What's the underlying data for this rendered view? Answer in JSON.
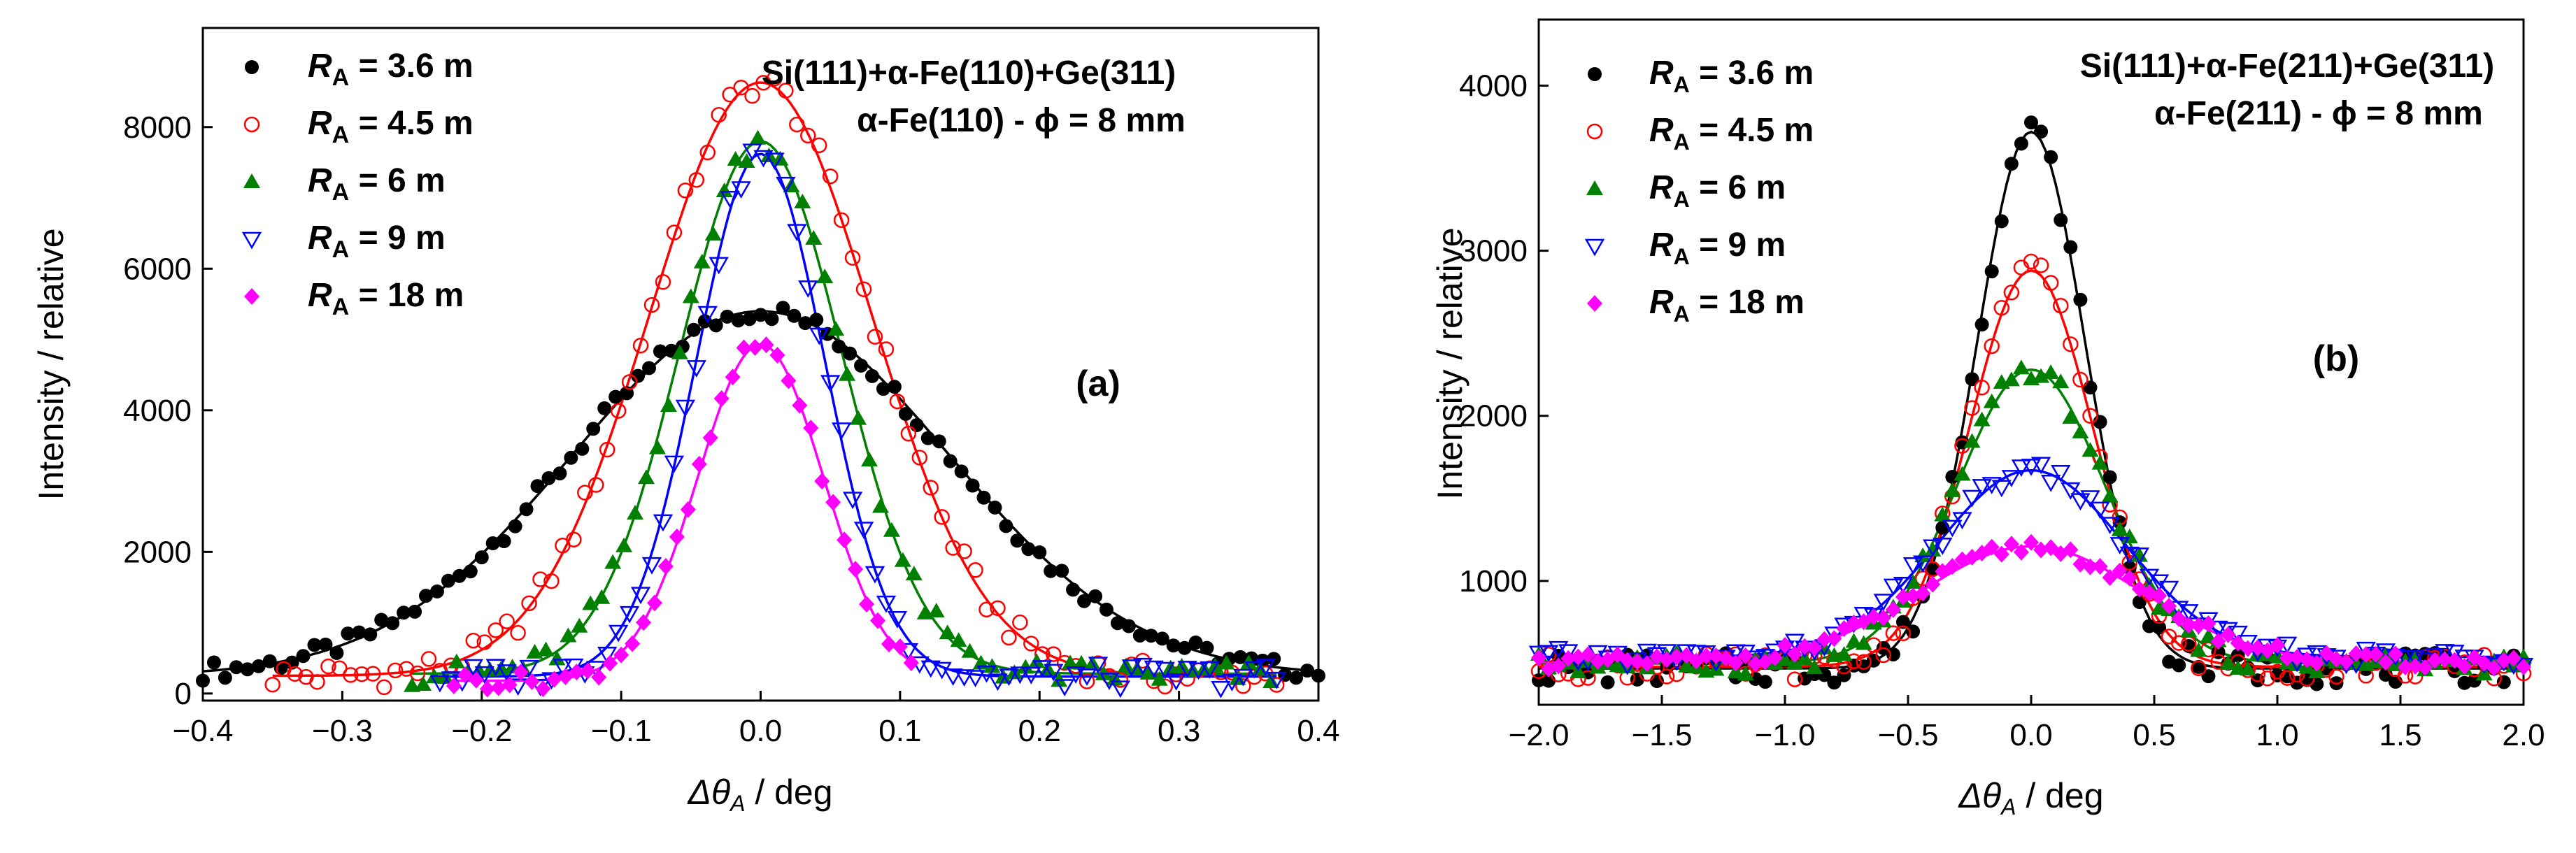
{
  "chart_data": [
    {
      "type": "scatter",
      "panel_label": "(a)",
      "annotation_line1": "Si(111)+α-Fe(110)+Ge(311)",
      "annotation_line2": "α-Fe(110) - ϕ = 8 mm",
      "xlabel": "Δθ_A / deg",
      "ylabel": "Intensity / relative",
      "xlim": [
        -0.4,
        0.4
      ],
      "ylim": [
        -100,
        9400
      ],
      "xticks": [
        "-0.4",
        "-0.3",
        "-0.2",
        "-0.1",
        "0.0",
        "0.1",
        "0.2",
        "0.3",
        "0.4"
      ],
      "yticks": [
        "0",
        "2000",
        "4000",
        "6000",
        "8000"
      ],
      "legend_position": "top-left",
      "series": [
        {
          "name": "R_A = 3.6 m",
          "color": "#000000",
          "marker": "filled-circle",
          "amplitude": 5150,
          "sigma": 0.135,
          "baseline": 250,
          "x_range": [
            -0.4,
            0.4
          ]
        },
        {
          "name": "R_A = 4.5 m",
          "color": "#ff0000",
          "marker": "open-circle",
          "amplitude": 8380,
          "sigma": 0.08,
          "baseline": 250,
          "x_range": [
            -0.35,
            0.37
          ]
        },
        {
          "name": "R_A = 6 m",
          "color": "#008000",
          "marker": "filled-triangle-up",
          "amplitude": 7520,
          "sigma": 0.058,
          "baseline": 280,
          "x_range": [
            -0.25,
            0.37
          ]
        },
        {
          "name": "R_A = 9 m",
          "color": "#0000ff",
          "marker": "open-triangle-down",
          "amplitude": 7380,
          "sigma": 0.046,
          "baseline": 240,
          "x_range": [
            -0.23,
            0.37
          ]
        },
        {
          "name": "R_A = 18 m",
          "color": "#ff00ff",
          "marker": "filled-diamond",
          "amplitude": 4750,
          "sigma": 0.045,
          "baseline": 180,
          "x_range": [
            -0.22,
            0.11
          ]
        }
      ]
    },
    {
      "type": "scatter",
      "panel_label": "(b)",
      "annotation_line1": "Si(111)+α-Fe(211)+Ge(311)",
      "annotation_line2": "α-Fe(211) - ϕ = 8 mm",
      "xlabel": "Δθ_A / deg",
      "ylabel": "Intensity / relative",
      "xlim": [
        -2.0,
        2.0
      ],
      "ylim": [
        250,
        4400
      ],
      "xticks": [
        "-2.0",
        "-1.5",
        "-1.0",
        "-0.5",
        "0.0",
        "0.5",
        "1.0",
        "1.5",
        "2.0"
      ],
      "yticks": [
        "1000",
        "2000",
        "3000",
        "4000"
      ],
      "legend_position": "top-left",
      "series": [
        {
          "name": "R_A = 3.6 m",
          "color": "#000000",
          "marker": "filled-circle",
          "amplitude": 3250,
          "sigma": 0.22,
          "baseline": 470,
          "x_range": [
            -2.0,
            2.0
          ]
        },
        {
          "name": "R_A = 4.5 m",
          "color": "#ff0000",
          "marker": "open-circle",
          "amplitude": 2400,
          "sigma": 0.25,
          "baseline": 480,
          "x_range": [
            -2.0,
            2.0
          ]
        },
        {
          "name": "R_A = 6 m",
          "color": "#008000",
          "marker": "filled-triangle-up",
          "amplitude": 1780,
          "sigma": 0.3,
          "baseline": 500,
          "x_range": [
            -2.0,
            2.0
          ]
        },
        {
          "name": "R_A = 9 m",
          "color": "#0000ff",
          "marker": "open-triangle-down",
          "amplitude": 1130,
          "sigma": 0.38,
          "baseline": 540,
          "x_range": [
            -2.0,
            2.0
          ]
        },
        {
          "name": "R_A = 18 m",
          "color": "#ff00ff",
          "marker": "filled-diamond",
          "amplitude": 700,
          "sigma": 0.45,
          "baseline": 510,
          "x_range": [
            -2.0,
            2.0
          ]
        }
      ]
    }
  ]
}
